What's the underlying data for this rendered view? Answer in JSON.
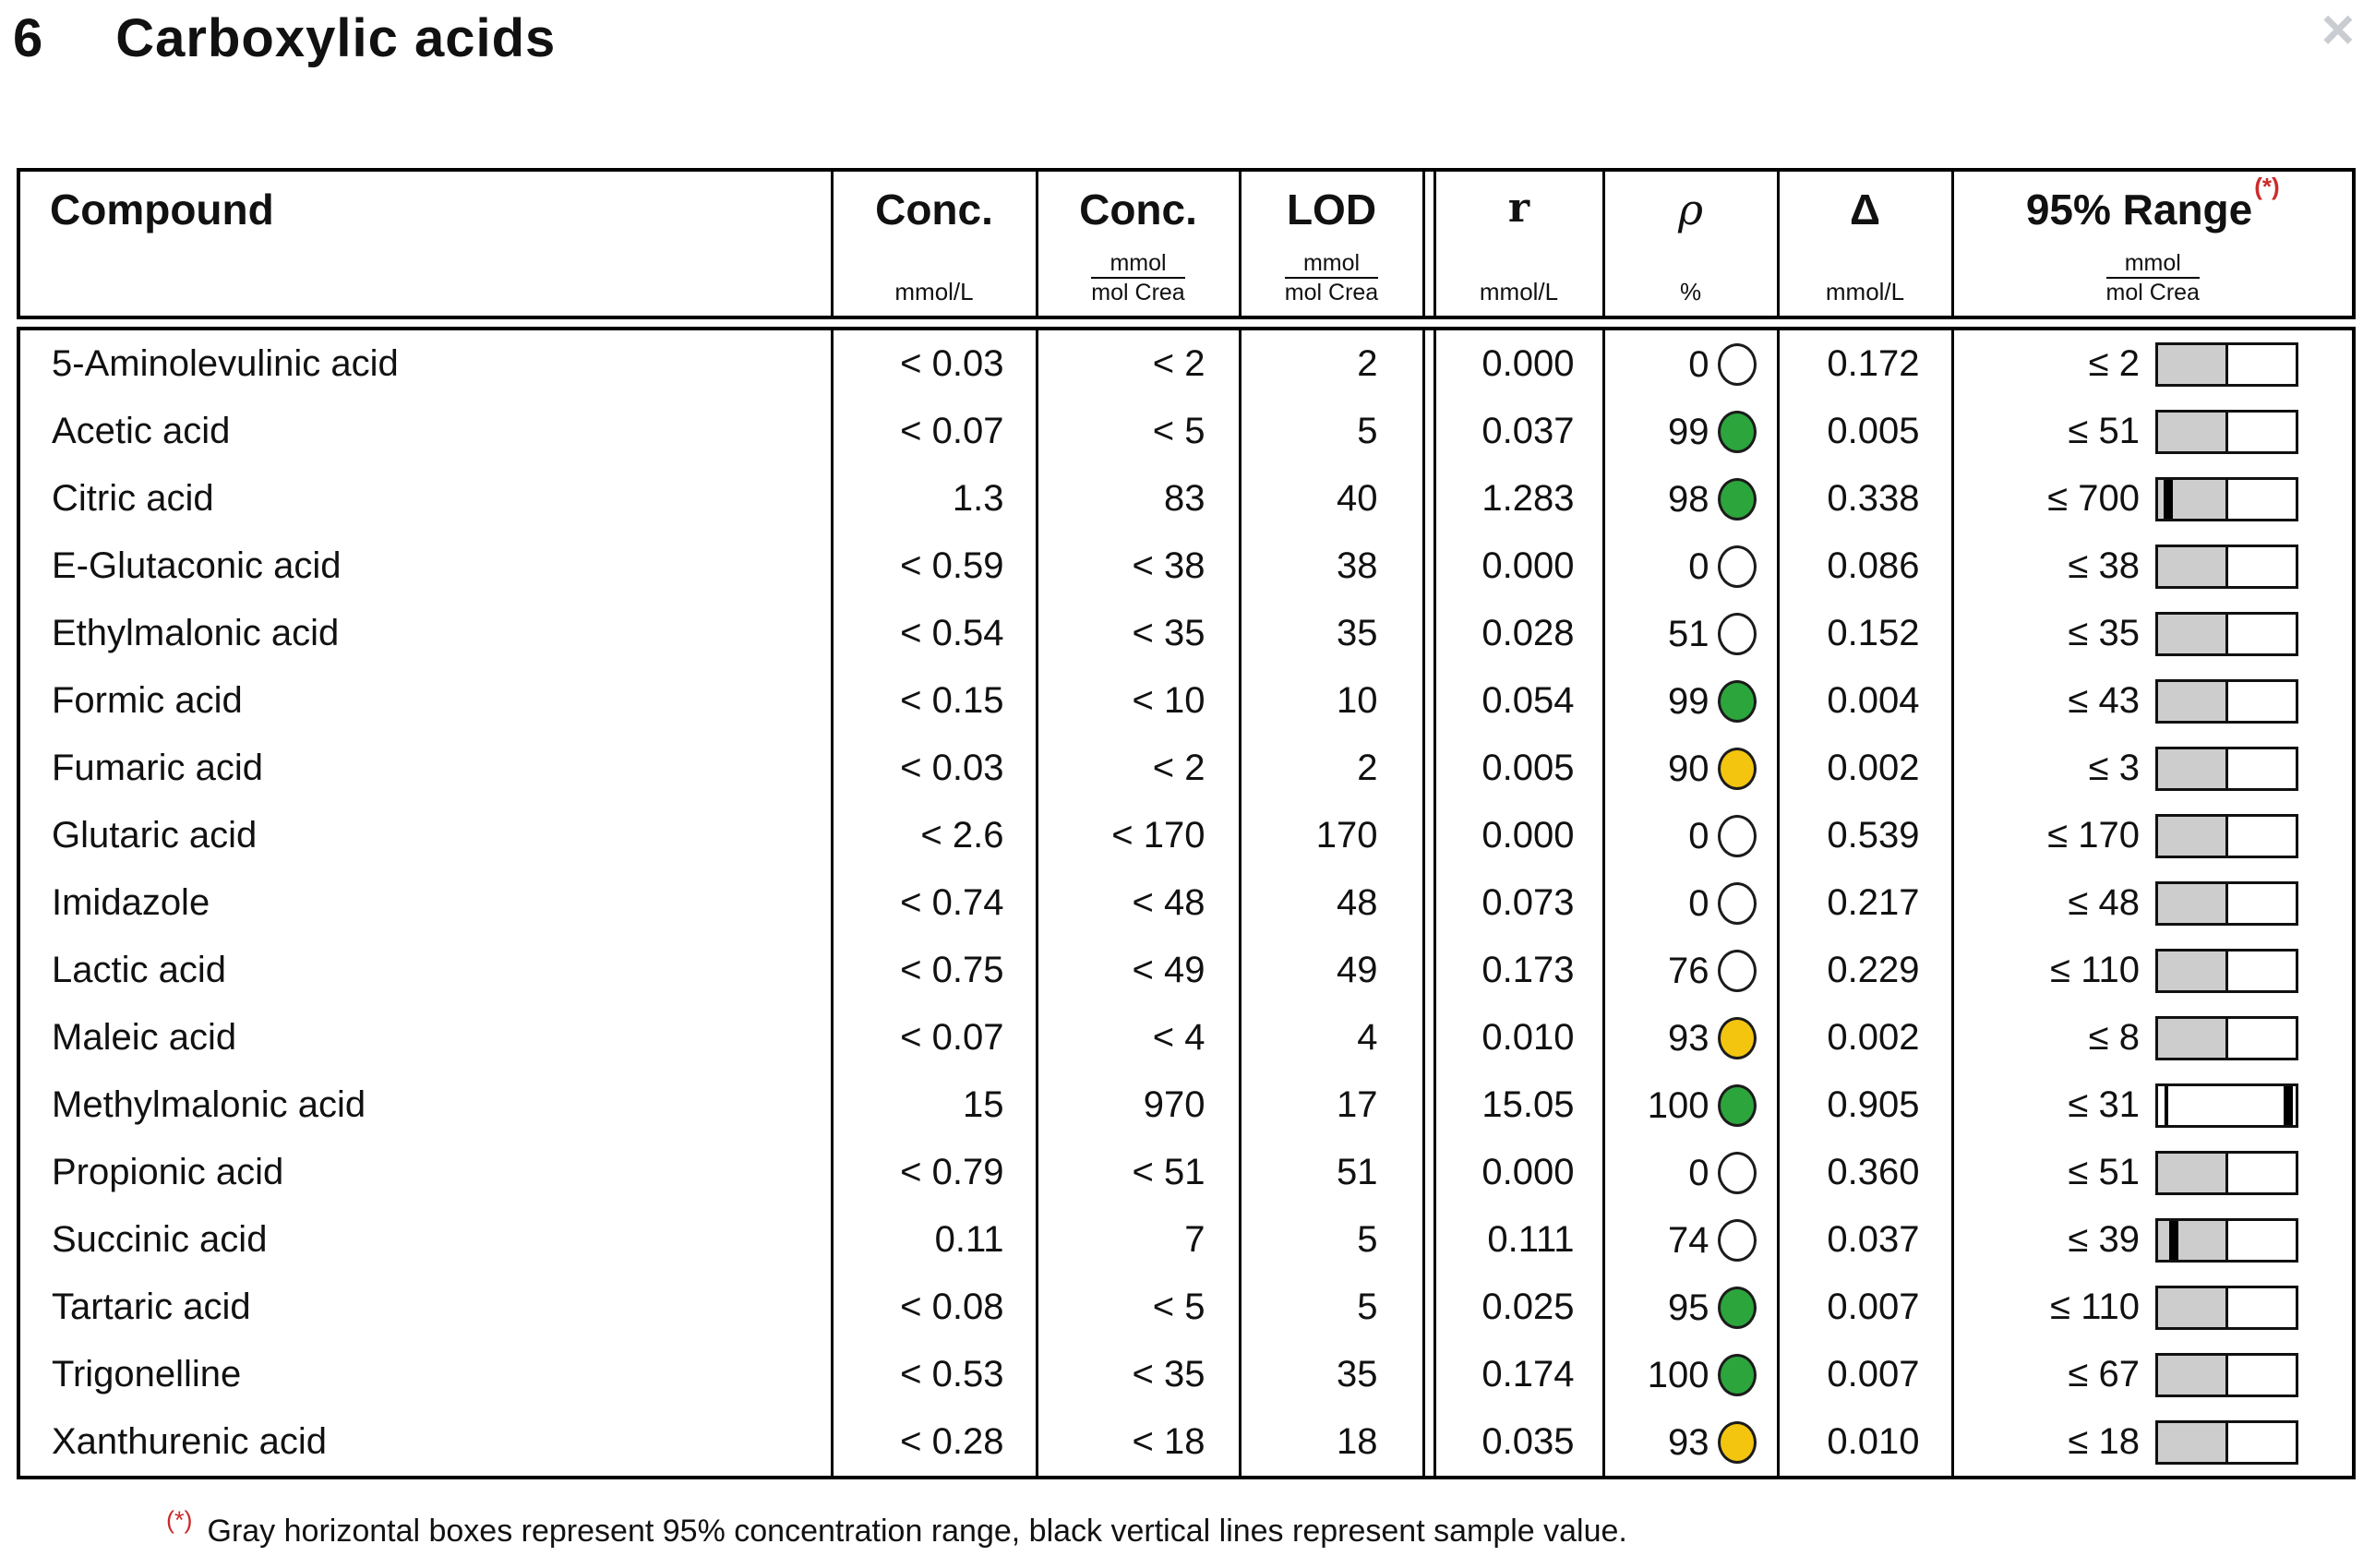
{
  "header": {
    "section_number": "6",
    "title": "Carboxylic acids",
    "close_icon": "×"
  },
  "colors": {
    "green": "#2ca53d",
    "yellow": "#f3c50f",
    "white": "#ffffff",
    "bar_gray": "#cdcdcd",
    "marker_red": "#cc2b2b",
    "close_gray": "#c9ccd1"
  },
  "table": {
    "columns": [
      {
        "label": "Compound"
      },
      {
        "label": "Conc.",
        "unit": "mmol/L"
      },
      {
        "label": "Conc.",
        "unit_num": "mmol",
        "unit_den": "mol Crea"
      },
      {
        "label": "LOD",
        "unit_num": "mmol",
        "unit_den": "mol Crea"
      },
      {
        "label": "r",
        "unit": "mmol/L"
      },
      {
        "label": "ρ",
        "unit": "%"
      },
      {
        "label": "Δ",
        "unit": "mmol/L"
      },
      {
        "label": "95% Range",
        "superscript": "(*)",
        "unit_num": "mmol",
        "unit_den": "mol Crea"
      }
    ],
    "rows": [
      {
        "compound": "5-Aminolevulinic acid",
        "conc_mmol_l": "< 0.03",
        "conc_mol_crea": "< 2",
        "lod": "2",
        "r": "0.000",
        "rho": "0",
        "rho_status": "white",
        "delta": "0.172",
        "range": "≤ 2",
        "bar_gray": true,
        "sample_line_pct": null,
        "thin_line_pct": null
      },
      {
        "compound": "Acetic acid",
        "conc_mmol_l": "< 0.07",
        "conc_mol_crea": "< 5",
        "lod": "5",
        "r": "0.037",
        "rho": "99",
        "rho_status": "green",
        "delta": "0.005",
        "range": "≤ 51",
        "bar_gray": true,
        "sample_line_pct": null,
        "thin_line_pct": null
      },
      {
        "compound": "Citric acid",
        "conc_mmol_l": "1.3",
        "conc_mol_crea": "83",
        "lod": "40",
        "r": "1.283",
        "rho": "98",
        "rho_status": "green",
        "delta": "0.338",
        "range": "≤ 700",
        "bar_gray": true,
        "sample_line_pct": 4,
        "thin_line_pct": null
      },
      {
        "compound": "E-Glutaconic acid",
        "conc_mmol_l": "< 0.59",
        "conc_mol_crea": "< 38",
        "lod": "38",
        "r": "0.000",
        "rho": "0",
        "rho_status": "white",
        "delta": "0.086",
        "range": "≤ 38",
        "bar_gray": true,
        "sample_line_pct": null,
        "thin_line_pct": null
      },
      {
        "compound": "Ethylmalonic acid",
        "conc_mmol_l": "< 0.54",
        "conc_mol_crea": "< 35",
        "lod": "35",
        "r": "0.028",
        "rho": "51",
        "rho_status": "white",
        "delta": "0.152",
        "range": "≤ 35",
        "bar_gray": true,
        "sample_line_pct": null,
        "thin_line_pct": null
      },
      {
        "compound": "Formic acid",
        "conc_mmol_l": "< 0.15",
        "conc_mol_crea": "< 10",
        "lod": "10",
        "r": "0.054",
        "rho": "99",
        "rho_status": "green",
        "delta": "0.004",
        "range": "≤ 43",
        "bar_gray": true,
        "sample_line_pct": null,
        "thin_line_pct": null
      },
      {
        "compound": "Fumaric acid",
        "conc_mmol_l": "< 0.03",
        "conc_mol_crea": "< 2",
        "lod": "2",
        "r": "0.005",
        "rho": "90",
        "rho_status": "yellow",
        "delta": "0.002",
        "range": "≤ 3",
        "bar_gray": true,
        "sample_line_pct": null,
        "thin_line_pct": null
      },
      {
        "compound": "Glutaric acid",
        "conc_mmol_l": "< 2.6",
        "conc_mol_crea": "< 170",
        "lod": "170",
        "r": "0.000",
        "rho": "0",
        "rho_status": "white",
        "delta": "0.539",
        "range": "≤ 170",
        "bar_gray": true,
        "sample_line_pct": null,
        "thin_line_pct": null
      },
      {
        "compound": "Imidazole",
        "conc_mmol_l": "< 0.74",
        "conc_mol_crea": "< 48",
        "lod": "48",
        "r": "0.073",
        "rho": "0",
        "rho_status": "white",
        "delta": "0.217",
        "range": "≤ 48",
        "bar_gray": true,
        "sample_line_pct": null,
        "thin_line_pct": null
      },
      {
        "compound": "Lactic acid",
        "conc_mmol_l": "< 0.75",
        "conc_mol_crea": "< 49",
        "lod": "49",
        "r": "0.173",
        "rho": "76",
        "rho_status": "white",
        "delta": "0.229",
        "range": "≤ 110",
        "bar_gray": true,
        "sample_line_pct": null,
        "thin_line_pct": null
      },
      {
        "compound": "Maleic acid",
        "conc_mmol_l": "< 0.07",
        "conc_mol_crea": "< 4",
        "lod": "4",
        "r": "0.010",
        "rho": "93",
        "rho_status": "yellow",
        "delta": "0.002",
        "range": "≤ 8",
        "bar_gray": true,
        "sample_line_pct": null,
        "thin_line_pct": null
      },
      {
        "compound": "Methylmalonic acid",
        "conc_mmol_l": "15",
        "conc_mol_crea": "970",
        "lod": "17",
        "r": "15.05",
        "rho": "100",
        "rho_status": "green",
        "delta": "0.905",
        "range": "≤ 31",
        "bar_gray": false,
        "sample_line_pct": 91,
        "thin_line_pct": 5
      },
      {
        "compound": "Propionic acid",
        "conc_mmol_l": "< 0.79",
        "conc_mol_crea": "< 51",
        "lod": "51",
        "r": "0.000",
        "rho": "0",
        "rho_status": "white",
        "delta": "0.360",
        "range": "≤ 51",
        "bar_gray": true,
        "sample_line_pct": null,
        "thin_line_pct": null
      },
      {
        "compound": "Succinic acid",
        "conc_mmol_l": "0.11",
        "conc_mol_crea": "7",
        "lod": "5",
        "r": "0.111",
        "rho": "74",
        "rho_status": "white",
        "delta": "0.037",
        "range": "≤ 39",
        "bar_gray": true,
        "sample_line_pct": 8,
        "thin_line_pct": null
      },
      {
        "compound": "Tartaric acid",
        "conc_mmol_l": "< 0.08",
        "conc_mol_crea": "< 5",
        "lod": "5",
        "r": "0.025",
        "rho": "95",
        "rho_status": "green",
        "delta": "0.007",
        "range": "≤ 110",
        "bar_gray": true,
        "sample_line_pct": null,
        "thin_line_pct": null
      },
      {
        "compound": "Trigonelline",
        "conc_mmol_l": "< 0.53",
        "conc_mol_crea": "< 35",
        "lod": "35",
        "r": "0.174",
        "rho": "100",
        "rho_status": "green",
        "delta": "0.007",
        "range": "≤ 67",
        "bar_gray": true,
        "sample_line_pct": null,
        "thin_line_pct": null
      },
      {
        "compound": "Xanthurenic acid",
        "conc_mmol_l": "< 0.28",
        "conc_mol_crea": "< 18",
        "lod": "18",
        "r": "0.035",
        "rho": "93",
        "rho_status": "yellow",
        "delta": "0.010",
        "range": "≤ 18",
        "bar_gray": true,
        "sample_line_pct": null,
        "thin_line_pct": null
      }
    ]
  },
  "footnote": {
    "marker": "(*)",
    "text": "Gray horizontal boxes represent 95% concentration range, black vertical lines represent sample value."
  }
}
